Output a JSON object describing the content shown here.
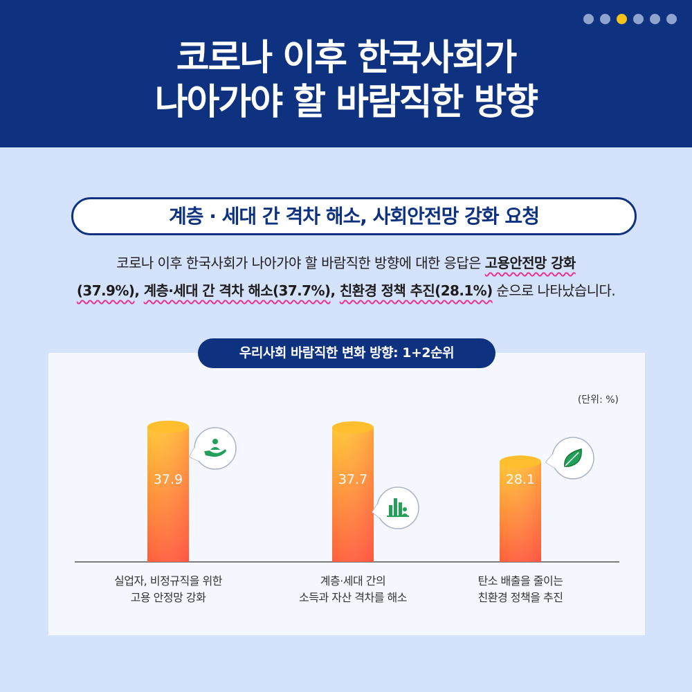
{
  "header": {
    "title_line1": "코로나 이후 한국사회가",
    "title_line2": "나아가야 할 바람직한 방향",
    "page_dots": 6,
    "active_dot": 2
  },
  "subheading": "계층 · 세대 간 격차 해소, 사회안전망 강화 요청",
  "description": {
    "prefix": "코로나 이후 한국사회가 나아가야 할 바람직한 방향에 대한 응답은 ",
    "hl1": "고용안전망 강화",
    "hl1b": "(37.9%)",
    "sep1": ", ",
    "hl2": "계층·세대 간 격차 해소(37.7%)",
    "sep2": ", ",
    "hl3": "친환경 정책 추진(28.1%)",
    "suffix": " 순으로 나타났습니다."
  },
  "chart_title": "우리사회 바람직한 변화 방향: 1+2순위",
  "chart_data": {
    "type": "bar",
    "title": "우리사회 바람직한 변화 방향: 1+2순위",
    "unit": "(단위: %)",
    "categories": [
      [
        "실업자, 비정규직을 위한",
        "고용 안정망 강화"
      ],
      [
        "계층·세대 간의",
        "소득과 자산 격차를 해소"
      ],
      [
        "탄소 배출을 줄이는",
        "친환경 정책을 추진"
      ]
    ],
    "values": [
      37.9,
      37.7,
      28.1
    ],
    "value_labels": [
      "37.9",
      "37.7",
      "28.1"
    ],
    "icons": [
      "hand-with-person-icon",
      "bar-chart-person-icon",
      "leaf-icon"
    ],
    "ylim": [
      0,
      50
    ]
  },
  "colors": {
    "navy": "#0e3280",
    "background": "#d5e2fb",
    "bar_top": "#ffc533",
    "bar_bottom": "#ff5e3a",
    "icon_green": "#22a05a",
    "accent_dot": "#f6c21c",
    "underline": "#e6338c"
  }
}
